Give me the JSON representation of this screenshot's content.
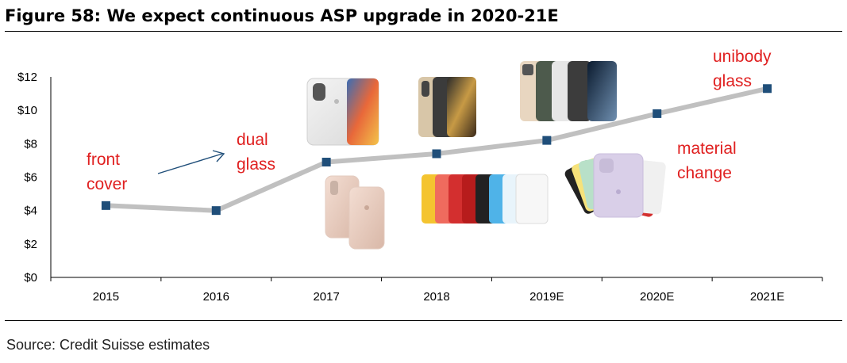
{
  "header": {
    "title": "Figure 58: We expect continuous ASP upgrade in 2020-21E"
  },
  "footer": {
    "source": "Source: Credit Suisse estimates"
  },
  "colors": {
    "line": "#c0c0c0",
    "marker": "#1f4e79",
    "annotation": "#e02020",
    "arrow": "#1f4e79"
  },
  "chart_data": {
    "type": "line",
    "categories": [
      "2015",
      "2016",
      "2017",
      "2018",
      "2019E",
      "2020E",
      "2021E"
    ],
    "series": [
      {
        "values": [
          4.3,
          4.0,
          6.9,
          7.4,
          8.2,
          9.8,
          11.3
        ]
      }
    ],
    "ylim": [
      0,
      12
    ],
    "yticks": [
      "$0",
      "$2",
      "$4",
      "$6",
      "$8",
      "$10",
      "$12"
    ],
    "grid": false,
    "annotations": [
      {
        "lines": [
          "front",
          "cover"
        ]
      },
      {
        "lines": [
          "dual",
          "glass"
        ]
      },
      {
        "lines": [
          "material",
          "change"
        ]
      },
      {
        "lines": [
          "unibody",
          "glass"
        ]
      }
    ],
    "images": [
      {
        "icon": "iphone-x-image"
      },
      {
        "icon": "iphone-8-image"
      },
      {
        "icon": "iphone-xs-image"
      },
      {
        "icon": "iphone-xr-lineup-image"
      },
      {
        "icon": "iphone-11-pro-lineup-image"
      },
      {
        "icon": "iphone-11-colors-image"
      }
    ]
  }
}
